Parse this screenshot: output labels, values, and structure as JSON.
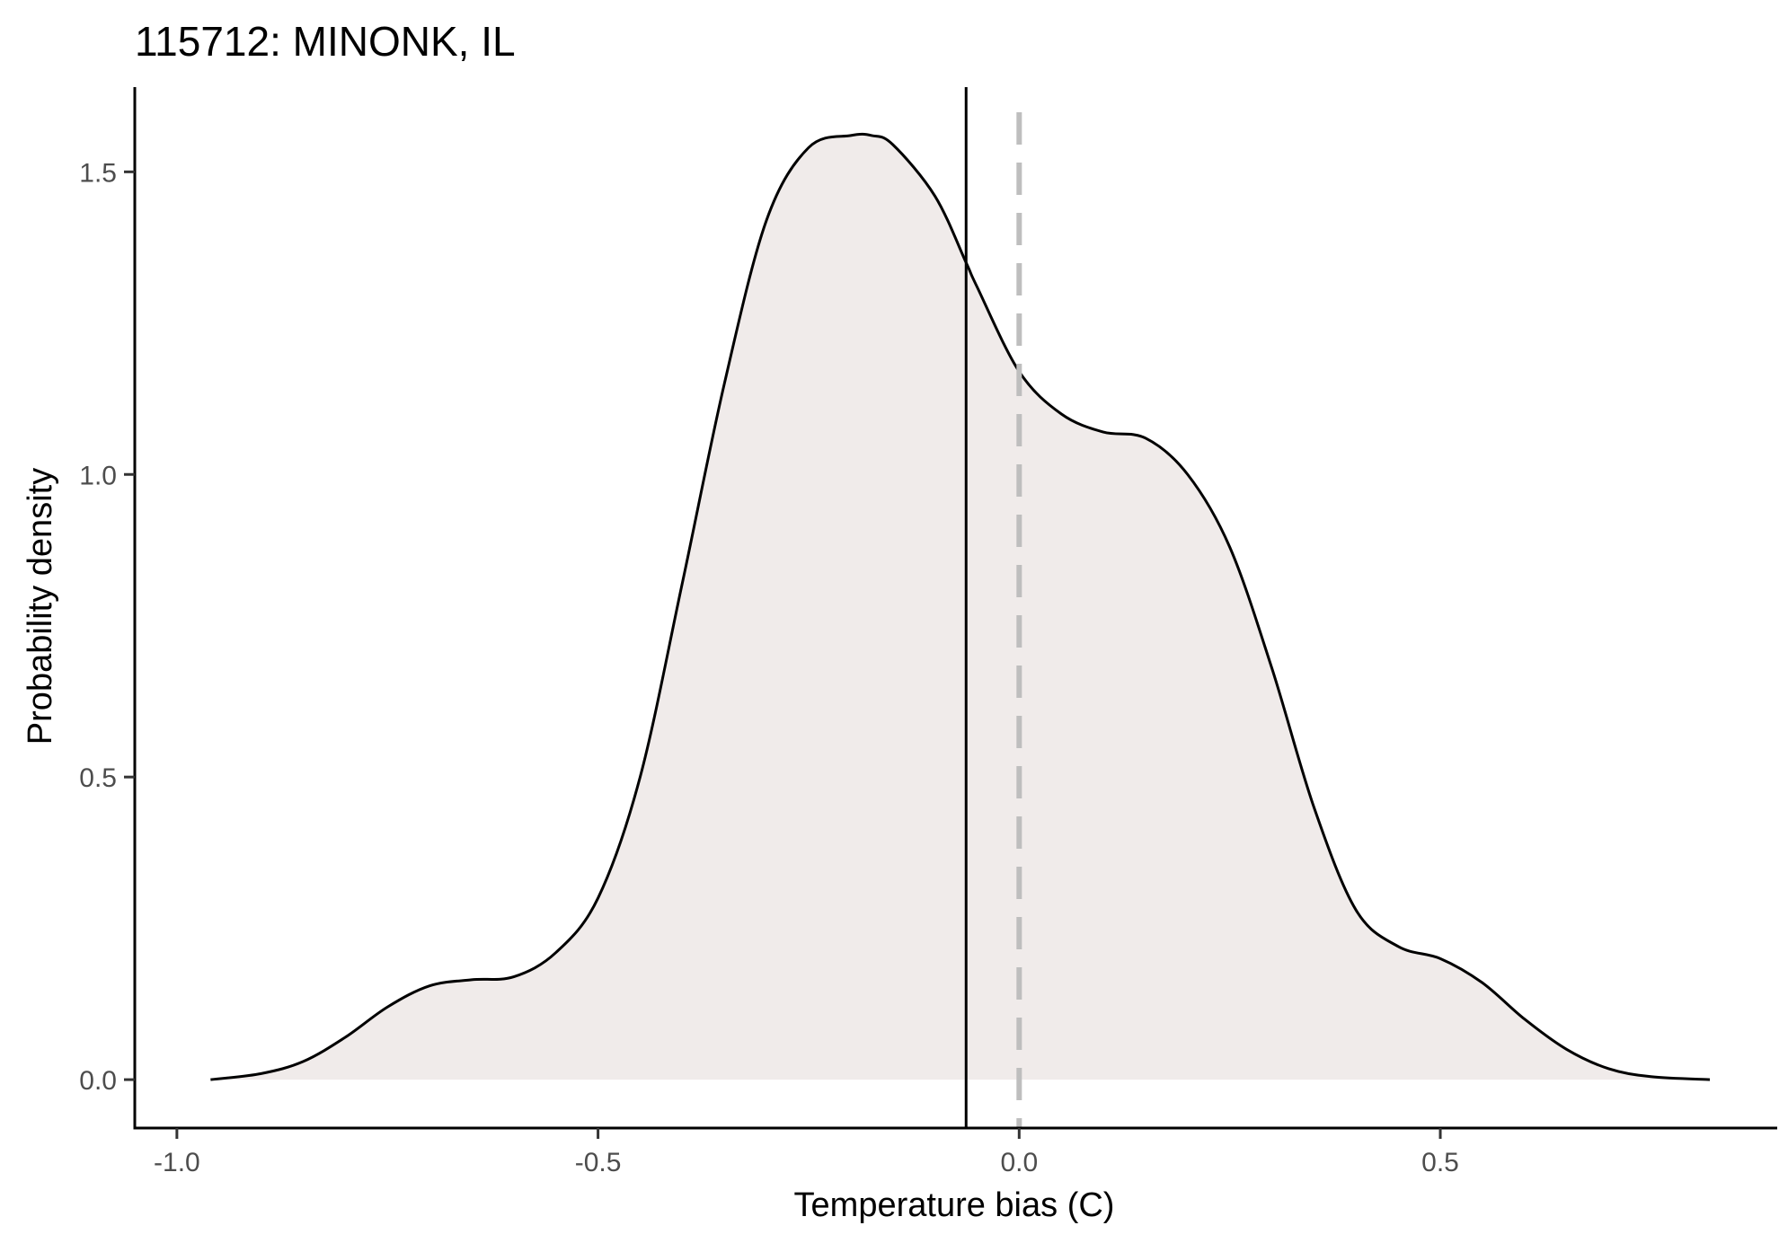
{
  "chart_data": {
    "type": "area",
    "title": "115712: MINONK, IL",
    "xlabel": "Temperature bias (C)",
    "ylabel": "Probability density",
    "xlim": [
      -1.05,
      0.9
    ],
    "ylim": [
      -0.08,
      1.64
    ],
    "x_ticks": [
      -1.0,
      -0.5,
      0.0,
      0.5
    ],
    "x_tick_labels": [
      "-1.0",
      "-0.5",
      "0.0",
      "0.5"
    ],
    "y_ticks": [
      0.0,
      0.5,
      1.0,
      1.5
    ],
    "y_tick_labels": [
      "0.0",
      "0.5",
      "1.0",
      "1.5"
    ],
    "grid": false,
    "colors": {
      "fill": "#f0ebea",
      "line": "#000000",
      "mean_line": "#000000",
      "zero_line": "#bebebe"
    },
    "reference_lines": [
      {
        "kind": "solid",
        "x": -0.063
      },
      {
        "kind": "dashed",
        "x": 0.0
      }
    ],
    "series": [
      {
        "x": [
          -0.96,
          -0.9,
          -0.85,
          -0.8,
          -0.75,
          -0.7,
          -0.65,
          -0.6,
          -0.55,
          -0.5,
          -0.45,
          -0.4,
          -0.35,
          -0.3,
          -0.25,
          -0.2,
          -0.175,
          -0.15,
          -0.1,
          -0.063,
          -0.05,
          0.0,
          0.05,
          0.1,
          0.15,
          0.2,
          0.25,
          0.3,
          0.35,
          0.4,
          0.45,
          0.5,
          0.55,
          0.6,
          0.65,
          0.7,
          0.75,
          0.82
        ],
        "y": [
          0.0,
          0.01,
          0.03,
          0.07,
          0.12,
          0.155,
          0.165,
          0.17,
          0.21,
          0.3,
          0.5,
          0.82,
          1.15,
          1.42,
          1.54,
          1.56,
          1.56,
          1.545,
          1.46,
          1.35,
          1.31,
          1.17,
          1.1,
          1.07,
          1.06,
          1.0,
          0.88,
          0.68,
          0.45,
          0.28,
          0.22,
          0.2,
          0.16,
          0.1,
          0.05,
          0.018,
          0.005,
          0.0
        ]
      }
    ]
  }
}
